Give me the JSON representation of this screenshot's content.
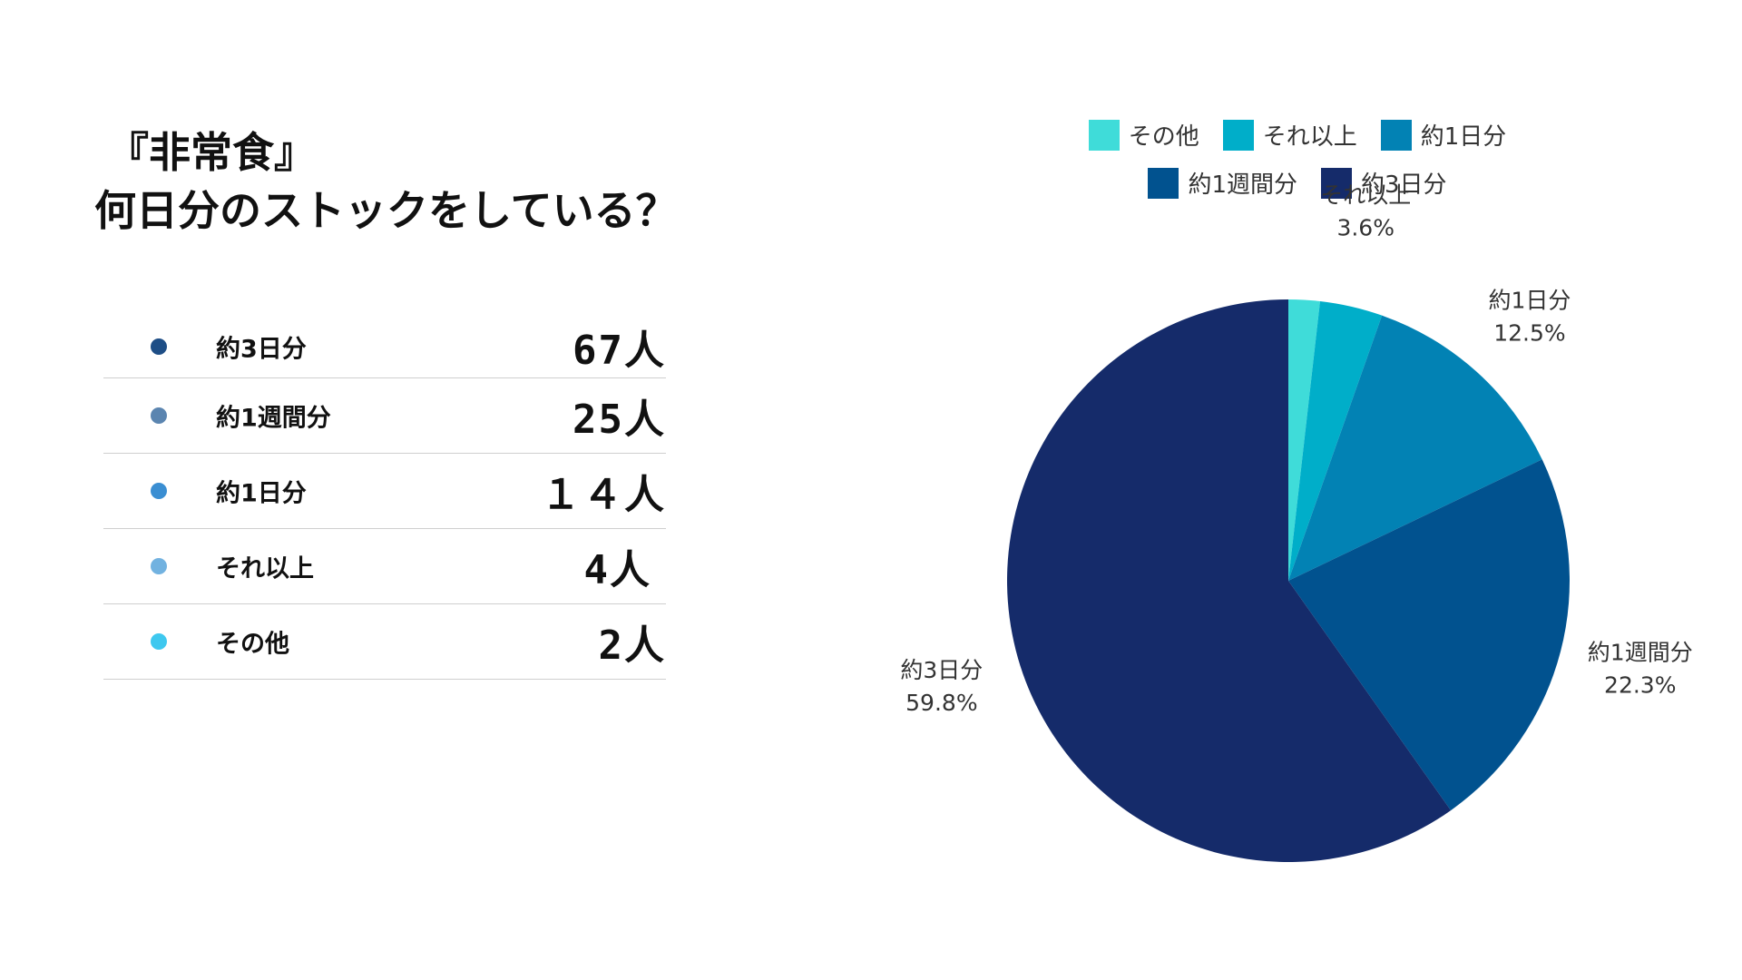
{
  "title": {
    "line1": "『非常食』",
    "line2": "何日分のストックをしている？"
  },
  "summary": [
    {
      "label": "約3日分",
      "count": "67人",
      "dot_color": "#1e4e86"
    },
    {
      "label": "約1週間分",
      "count": "25人",
      "dot_color": "#5b85b0"
    },
    {
      "label": "約1日分",
      "count": "１４人",
      "dot_color": "#3a8ed2"
    },
    {
      "label": "それ以上",
      "count": "4人",
      "dot_color": "#72b2e0"
    },
    {
      "label": "その他",
      "count": "2人",
      "dot_color": "#3ec8ef"
    }
  ],
  "chart_data": {
    "type": "pie",
    "legend_position": "top",
    "slices": [
      {
        "name": "その他",
        "value": 1.8,
        "label": "",
        "color": "#3fdcd9"
      },
      {
        "name": "それ以上",
        "value": 3.6,
        "label": "3.6%",
        "color": "#00aec9"
      },
      {
        "name": "約1日分",
        "value": 12.5,
        "label": "12.5%",
        "color": "#0282b4"
      },
      {
        "name": "約1週間分",
        "value": 22.3,
        "label": "22.3%",
        "color": "#01528f"
      },
      {
        "name": "約3日分",
        "value": 59.8,
        "label": "59.8%",
        "color": "#152b6a"
      }
    ],
    "legend_rows": [
      [
        "その他",
        "それ以上",
        "約1日分"
      ],
      [
        "約1週間分",
        "約3日分"
      ]
    ]
  }
}
